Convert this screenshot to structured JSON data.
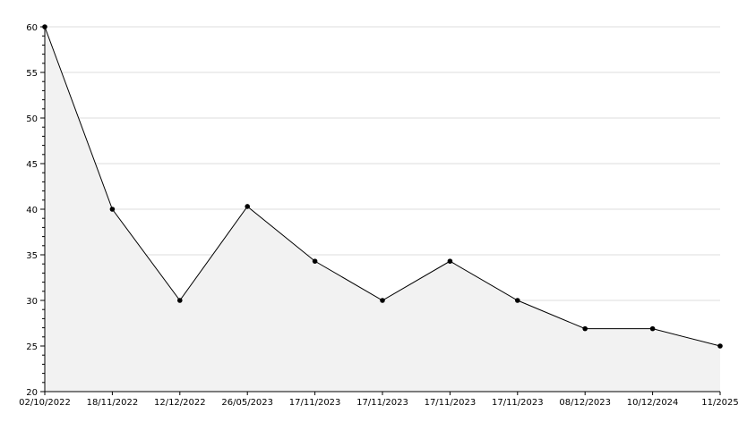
{
  "chart_data": {
    "type": "area",
    "title": "",
    "xlabel": "",
    "ylabel": "",
    "categories": [
      "02/10/2022",
      "18/11/2022",
      "12/12/2022",
      "26/05/2023",
      "17/11/2023",
      "17/11/2023",
      "17/11/2023",
      "17/11/2023",
      "08/12/2023",
      "10/12/2024",
      "11/2025"
    ],
    "values": [
      60,
      40,
      30,
      40.3,
      34.3,
      30,
      34.3,
      30,
      26.9,
      26.9,
      25
    ],
    "ylim": [
      20,
      60
    ],
    "yticks": [
      20,
      25,
      30,
      35,
      40,
      45,
      50,
      55,
      60
    ],
    "y_minor_step": 1,
    "grid": "horizontal",
    "colors": {
      "line": "#000000",
      "fill": "#f2f2f2",
      "grid": "#dddddd",
      "marker": "#000000"
    }
  }
}
